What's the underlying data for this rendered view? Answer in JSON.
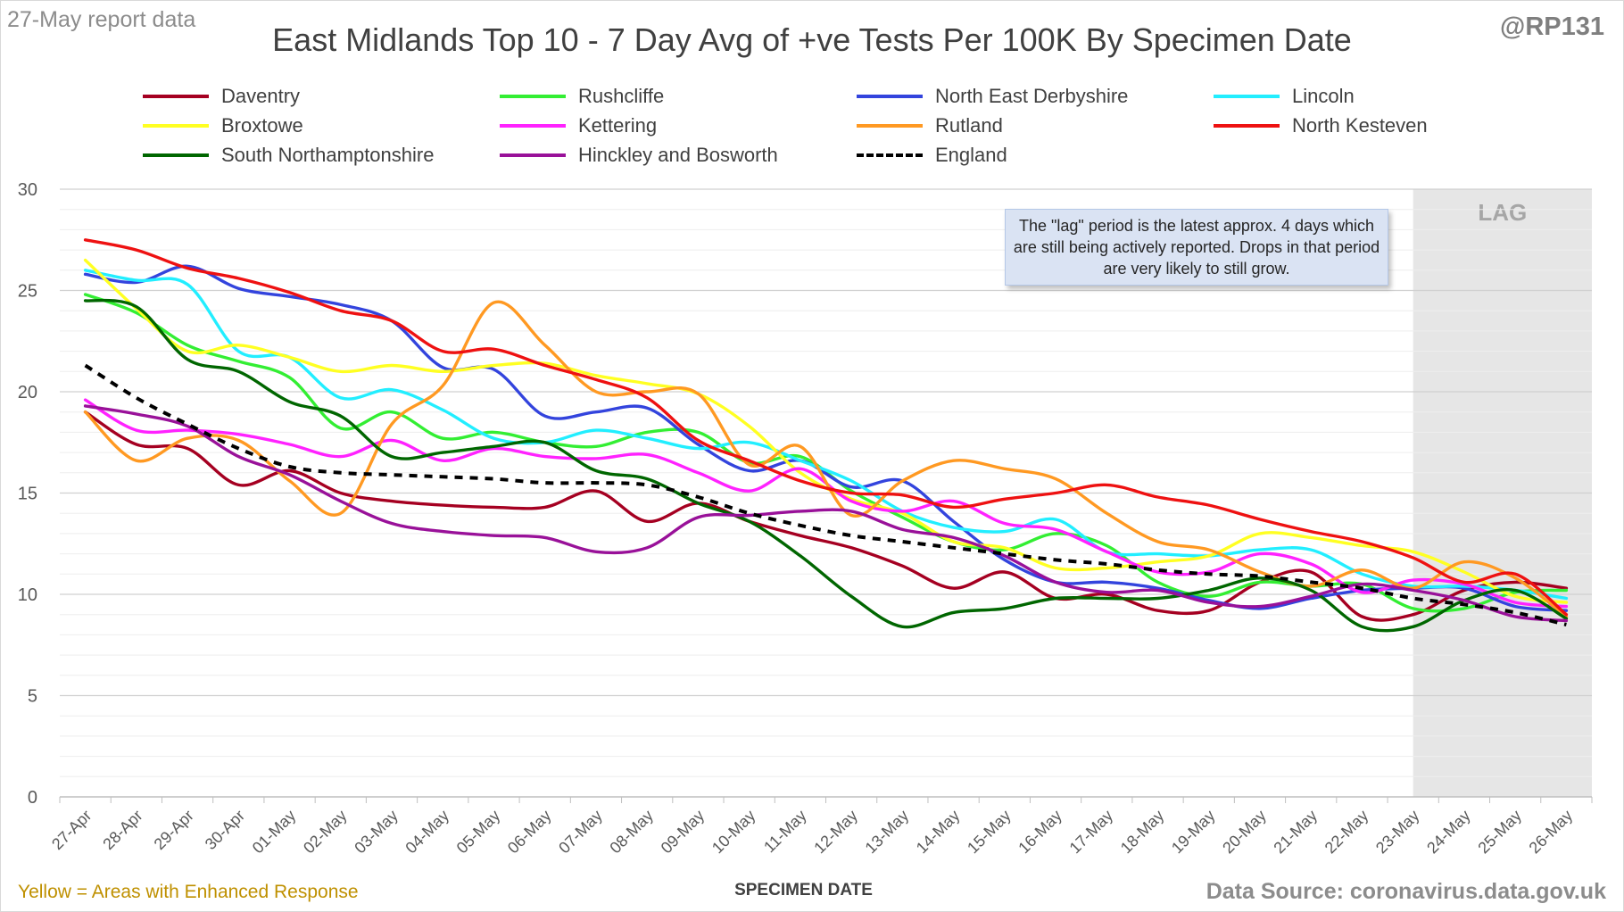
{
  "header": {
    "report_date": "27-May report data",
    "handle": "@RP131"
  },
  "footer": {
    "left_note": "Yellow = Areas with Enhanced Response",
    "source": "Data Source: coronavirus.data.gov.uk"
  },
  "annotation": {
    "text": "The \"lag\" period is the latest approx. 4 days which are still being actively reported. Drops in that period are very likely to still grow."
  },
  "chart_data": {
    "type": "line",
    "title": "East Midlands Top 10 - 7 Day Avg of +ve Tests Per 100K By Specimen Date",
    "xlabel": "SPECIMEN DATE",
    "ylabel": "",
    "ylim": [
      0,
      30
    ],
    "yticks": [
      0,
      5,
      10,
      15,
      20,
      25,
      30
    ],
    "grid": true,
    "legend": "top",
    "lag_region": {
      "label": "LAG",
      "from": "23-May",
      "to": "26-May",
      "color": "#e6e6e6"
    },
    "categories": [
      "27-Apr",
      "28-Apr",
      "29-Apr",
      "30-Apr",
      "01-May",
      "02-May",
      "03-May",
      "04-May",
      "05-May",
      "06-May",
      "07-May",
      "08-May",
      "09-May",
      "10-May",
      "11-May",
      "12-May",
      "13-May",
      "14-May",
      "15-May",
      "16-May",
      "17-May",
      "18-May",
      "19-May",
      "20-May",
      "21-May",
      "22-May",
      "23-May",
      "24-May",
      "25-May",
      "26-May"
    ],
    "series": [
      {
        "name": "Daventry",
        "color": "#a50021",
        "dash": false,
        "values": [
          19.0,
          17.4,
          17.2,
          15.4,
          16.1,
          15.0,
          14.6,
          14.4,
          14.3,
          14.3,
          15.1,
          13.6,
          14.5,
          13.6,
          12.9,
          12.3,
          11.4,
          10.3,
          11.1,
          9.8,
          10.0,
          9.2,
          9.2,
          10.6,
          11.1,
          8.9,
          9.0,
          10.2,
          10.6,
          10.3
        ]
      },
      {
        "name": "Rushcliffe",
        "color": "#33ee33",
        "dash": false,
        "values": [
          24.8,
          23.9,
          22.3,
          21.5,
          20.7,
          18.2,
          19.0,
          17.7,
          18.0,
          17.5,
          17.3,
          18.0,
          18.0,
          16.5,
          16.8,
          15.1,
          13.8,
          12.6,
          12.2,
          13.0,
          12.4,
          10.6,
          9.9,
          10.6,
          10.4,
          10.5,
          9.3,
          9.3,
          10.1,
          10.2
        ]
      },
      {
        "name": "North East Derbyshire",
        "color": "#3344dd",
        "dash": false,
        "values": [
          25.8,
          25.4,
          26.2,
          25.1,
          24.7,
          24.3,
          23.5,
          21.2,
          21.1,
          18.8,
          19.0,
          19.2,
          17.4,
          16.1,
          16.6,
          15.3,
          15.6,
          13.6,
          11.7,
          10.6,
          10.6,
          10.3,
          9.7,
          9.3,
          9.8,
          10.2,
          10.3,
          10.3,
          9.4,
          9.2
        ]
      },
      {
        "name": "Lincoln",
        "color": "#22eeff",
        "dash": false,
        "values": [
          26.0,
          25.5,
          25.3,
          22.0,
          21.7,
          19.7,
          20.1,
          19.1,
          17.7,
          17.5,
          18.1,
          17.7,
          17.2,
          17.5,
          16.6,
          15.6,
          14.1,
          13.3,
          13.1,
          13.7,
          12.1,
          12.0,
          11.9,
          12.2,
          12.2,
          11.0,
          10.4,
          10.4,
          10.2,
          9.8
        ]
      },
      {
        "name": "Broxtowe",
        "color": "#ffff22",
        "dash": false,
        "values": [
          26.5,
          24.1,
          22.0,
          22.3,
          21.7,
          21.0,
          21.3,
          21.0,
          21.3,
          21.4,
          20.8,
          20.4,
          19.9,
          18.3,
          16.0,
          14.7,
          14.0,
          12.6,
          12.3,
          11.3,
          11.3,
          11.6,
          11.9,
          13.0,
          12.8,
          12.4,
          12.1,
          11.1,
          9.9,
          9.6
        ]
      },
      {
        "name": "Kettering",
        "color": "#ff22ff",
        "dash": false,
        "values": [
          19.6,
          18.1,
          18.1,
          17.9,
          17.4,
          16.8,
          17.6,
          16.6,
          17.2,
          16.8,
          16.7,
          16.9,
          16.0,
          15.1,
          16.2,
          14.6,
          14.1,
          14.6,
          13.5,
          13.2,
          12.1,
          11.1,
          11.1,
          12.0,
          11.5,
          10.1,
          10.7,
          10.5,
          9.6,
          9.4
        ]
      },
      {
        "name": "Rutland",
        "color": "#ff9922",
        "dash": false,
        "values": [
          19.0,
          16.6,
          17.7,
          17.6,
          15.6,
          14.0,
          18.4,
          20.3,
          24.4,
          22.3,
          20.0,
          20.0,
          19.9,
          16.4,
          17.3,
          13.9,
          15.6,
          16.6,
          16.2,
          15.7,
          14.0,
          12.6,
          12.2,
          11.1,
          10.4,
          11.2,
          10.3,
          11.6,
          10.8,
          8.9
        ]
      },
      {
        "name": "North Kesteven",
        "color": "#ee1111",
        "dash": false,
        "values": [
          27.5,
          27.0,
          26.1,
          25.6,
          24.9,
          24.0,
          23.5,
          22.0,
          22.1,
          21.3,
          20.6,
          19.7,
          17.6,
          16.6,
          15.6,
          15.0,
          14.9,
          14.3,
          14.7,
          15.0,
          15.4,
          14.8,
          14.4,
          13.7,
          13.1,
          12.6,
          11.8,
          10.6,
          11.0,
          9.0
        ]
      },
      {
        "name": "South Northamptonshire",
        "color": "#006600",
        "dash": false,
        "values": [
          24.5,
          24.2,
          21.6,
          21.0,
          19.5,
          18.8,
          16.8,
          17.0,
          17.3,
          17.5,
          16.1,
          15.7,
          14.5,
          13.6,
          11.9,
          9.9,
          8.4,
          9.1,
          9.3,
          9.8,
          9.8,
          9.8,
          10.2,
          10.8,
          10.2,
          8.4,
          8.4,
          9.7,
          10.2,
          8.8
        ]
      },
      {
        "name": "Hinckley and Bosworth",
        "color": "#991199",
        "dash": false,
        "values": [
          19.3,
          18.9,
          18.3,
          16.8,
          15.9,
          14.6,
          13.5,
          13.1,
          12.9,
          12.8,
          12.1,
          12.3,
          13.8,
          13.9,
          14.1,
          14.1,
          13.2,
          12.8,
          11.9,
          10.6,
          10.1,
          10.2,
          9.6,
          9.4,
          9.9,
          10.5,
          10.2,
          9.7,
          8.9,
          8.7
        ]
      },
      {
        "name": "England",
        "color": "#000000",
        "dash": true,
        "values": [
          21.3,
          19.7,
          18.4,
          17.2,
          16.3,
          16.0,
          15.9,
          15.8,
          15.7,
          15.5,
          15.5,
          15.4,
          14.8,
          14.0,
          13.4,
          12.9,
          12.6,
          12.3,
          12.0,
          11.7,
          11.5,
          11.2,
          11.0,
          10.9,
          10.6,
          10.3,
          9.8,
          9.5,
          9.1,
          8.5
        ]
      }
    ]
  }
}
